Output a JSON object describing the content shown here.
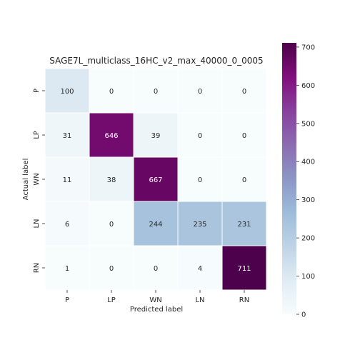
{
  "chart_data": {
    "type": "heatmap",
    "title": "SAGE7L_multiclass_16HC_v2_max_40000_0_0005",
    "xlabel": "Predicted label",
    "ylabel": "Actual label",
    "x_categories": [
      "P",
      "LP",
      "WN",
      "LN",
      "RN"
    ],
    "y_categories": [
      "P",
      "LP",
      "WN",
      "LN",
      "RN"
    ],
    "values": [
      [
        100,
        0,
        0,
        0,
        0
      ],
      [
        31,
        646,
        39,
        0,
        0
      ],
      [
        11,
        38,
        667,
        0,
        0
      ],
      [
        6,
        0,
        244,
        235,
        231
      ],
      [
        1,
        0,
        0,
        4,
        711
      ]
    ],
    "colorbar": {
      "min": 0,
      "max": 711,
      "ticks": [
        0,
        100,
        200,
        300,
        400,
        500,
        600,
        700
      ],
      "colormap": "BuPu",
      "colors": [
        "#f7fcfd",
        "#e0ecf4",
        "#bfd3e6",
        "#9ebcda",
        "#8c96c6",
        "#8c6bb1",
        "#88419d",
        "#810f7c",
        "#4d004b"
      ]
    },
    "grid": false,
    "legend": "colorbar-right"
  }
}
